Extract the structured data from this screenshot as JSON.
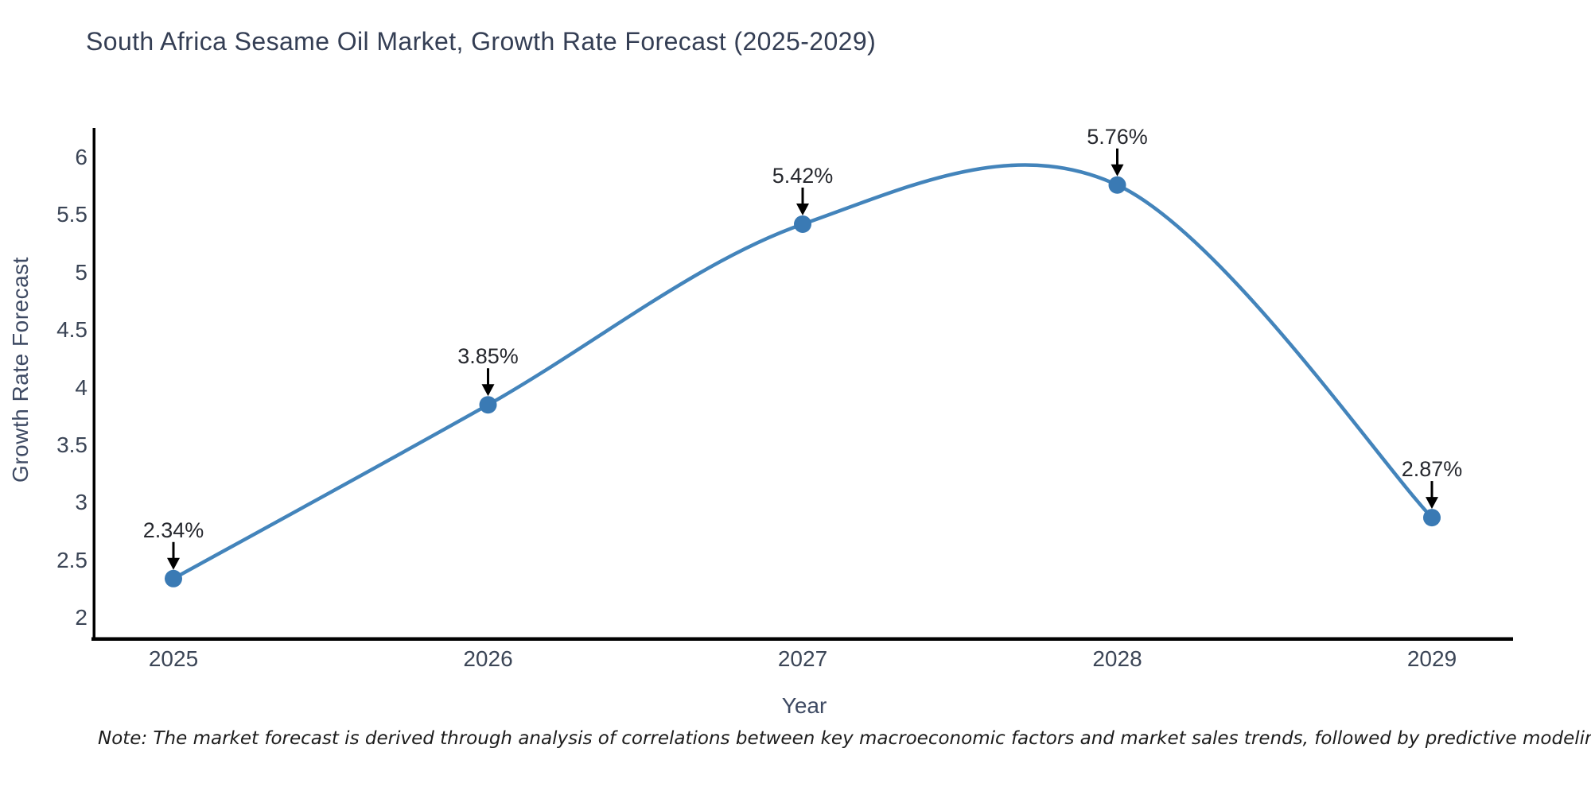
{
  "chart_data": {
    "type": "line",
    "title": "South Africa Sesame Oil Market, Growth Rate Forecast (2025-2029)",
    "xlabel": "Year",
    "ylabel": "Growth Rate Forecast",
    "categories": [
      "2025",
      "2026",
      "2027",
      "2028",
      "2029"
    ],
    "values": [
      2.34,
      3.85,
      5.42,
      5.76,
      2.87
    ],
    "point_labels": [
      "2.34%",
      "3.85%",
      "5.42%",
      "5.76%",
      "2.87%"
    ],
    "ytick_values": [
      6,
      5.5,
      5,
      4.5,
      4,
      3.5,
      3,
      2.5,
      2
    ],
    "ytick_labels": [
      "6",
      "5.5",
      "5",
      "4.5",
      "4",
      "3.5",
      "3",
      "2.5",
      "2"
    ],
    "ylim": [
      1.8,
      6.2
    ],
    "grid": false,
    "legend": false,
    "smooth": true,
    "marker": "circle",
    "colors": {
      "line": "#4384bb",
      "marker": "#3a7ab4",
      "spine": "#000000",
      "arrow": "#000000",
      "title_text": "#343e54",
      "tick_text": "#3b4556",
      "annotation_text": "#26282e",
      "note_text": "#1c1c1c",
      "background": "#ffffff"
    }
  },
  "footnote": "Note: The market forecast is derived through analysis of correlations between key macroeconomic factors and market sales trends, followed by predictive modeling to project future sales"
}
